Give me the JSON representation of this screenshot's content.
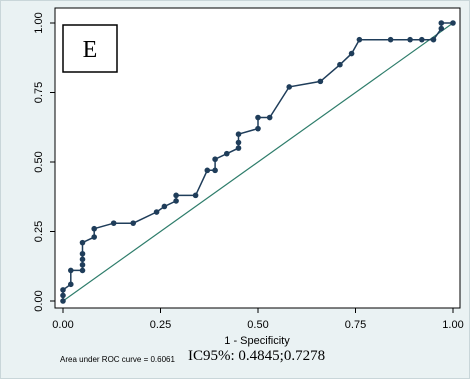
{
  "chart_data": {
    "type": "line",
    "panel_label": "E",
    "xlabel": "1 - Specificity",
    "ylabel": "",
    "xlim": [
      0,
      1
    ],
    "ylim": [
      0,
      1
    ],
    "x_ticks": [
      "0.00",
      "0.25",
      "0.50",
      "0.75",
      "1.00"
    ],
    "y_ticks": [
      "0.00",
      "0.25",
      "0.50",
      "0.75",
      "1.00"
    ],
    "grid": false,
    "series": [
      {
        "color": "#1f3d5a",
        "marker": "circle",
        "points": [
          [
            0.0,
            0.0
          ],
          [
            0.0,
            0.02
          ],
          [
            0.0,
            0.04
          ],
          [
            0.02,
            0.06
          ],
          [
            0.02,
            0.11
          ],
          [
            0.05,
            0.11
          ],
          [
            0.05,
            0.13
          ],
          [
            0.05,
            0.15
          ],
          [
            0.05,
            0.17
          ],
          [
            0.05,
            0.21
          ],
          [
            0.08,
            0.23
          ],
          [
            0.08,
            0.26
          ],
          [
            0.13,
            0.28
          ],
          [
            0.18,
            0.28
          ],
          [
            0.24,
            0.32
          ],
          [
            0.26,
            0.34
          ],
          [
            0.29,
            0.36
          ],
          [
            0.29,
            0.38
          ],
          [
            0.34,
            0.38
          ],
          [
            0.37,
            0.47
          ],
          [
            0.39,
            0.47
          ],
          [
            0.39,
            0.51
          ],
          [
            0.42,
            0.53
          ],
          [
            0.45,
            0.55
          ],
          [
            0.45,
            0.57
          ],
          [
            0.45,
            0.6
          ],
          [
            0.5,
            0.62
          ],
          [
            0.5,
            0.66
          ],
          [
            0.53,
            0.66
          ],
          [
            0.58,
            0.77
          ],
          [
            0.66,
            0.79
          ],
          [
            0.71,
            0.85
          ],
          [
            0.74,
            0.89
          ],
          [
            0.76,
            0.94
          ],
          [
            0.84,
            0.94
          ],
          [
            0.89,
            0.94
          ],
          [
            0.92,
            0.94
          ],
          [
            0.95,
            0.94
          ],
          [
            0.97,
            0.98
          ],
          [
            0.97,
            1.0
          ],
          [
            1.0,
            1.0
          ]
        ]
      },
      {
        "color": "#2e7d6b",
        "marker": "none",
        "points": [
          [
            0,
            0
          ],
          [
            1,
            1
          ]
        ]
      }
    ],
    "annotations": {
      "auc": "Area under ROC curve = 0.6061",
      "ci": "IC95%: 0.4845;0.7278"
    }
  }
}
